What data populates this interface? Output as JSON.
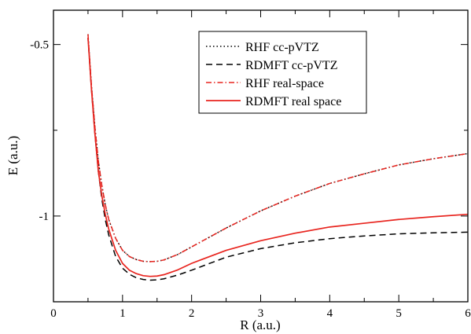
{
  "chart_data": {
    "type": "line",
    "title": "",
    "xlabel": "R (a.u.)",
    "ylabel": "E (a.u.)",
    "xlim": [
      0,
      6
    ],
    "ylim": [
      -1.25,
      -0.4
    ],
    "x_ticks": [
      0,
      1,
      2,
      3,
      4,
      5,
      6
    ],
    "y_ticks": [
      -1,
      -0.5
    ],
    "x_tick_labels": [
      "0",
      "1",
      "2",
      "3",
      "4",
      "5",
      "6"
    ],
    "y_tick_labels": [
      "-1",
      "-0.5"
    ],
    "grid": false,
    "legend_position": "top-right",
    "series": [
      {
        "name": "RHF cc-pVTZ",
        "color": "#000000",
        "dash": "dotted",
        "x": [
          0.5,
          0.55,
          0.6,
          0.65,
          0.7,
          0.75,
          0.8,
          0.9,
          1.0,
          1.1,
          1.2,
          1.3,
          1.4,
          1.5,
          1.6,
          1.8,
          2.0,
          2.5,
          3.0,
          3.5,
          4.0,
          4.5,
          5.0,
          5.5,
          6.0
        ],
        "y": [
          -0.47,
          -0.62,
          -0.74,
          -0.84,
          -0.91,
          -0.967,
          -1.01,
          -1.065,
          -1.1,
          -1.118,
          -1.127,
          -1.132,
          -1.133,
          -1.132,
          -1.128,
          -1.112,
          -1.09,
          -1.035,
          -0.985,
          -0.942,
          -0.905,
          -0.877,
          -0.851,
          -0.833,
          -0.818
        ]
      },
      {
        "name": "RDMFT cc-pVTZ",
        "color": "#000000",
        "dash": "dashed",
        "x": [
          0.5,
          0.55,
          0.6,
          0.65,
          0.7,
          0.75,
          0.8,
          0.9,
          1.0,
          1.1,
          1.2,
          1.3,
          1.4,
          1.5,
          1.6,
          1.8,
          2.0,
          2.5,
          3.0,
          3.5,
          4.0,
          4.5,
          5.0,
          5.5,
          6.0
        ],
        "y": [
          -0.48,
          -0.63,
          -0.76,
          -0.87,
          -0.95,
          -1.01,
          -1.055,
          -1.118,
          -1.152,
          -1.17,
          -1.18,
          -1.185,
          -1.187,
          -1.186,
          -1.183,
          -1.172,
          -1.158,
          -1.12,
          -1.095,
          -1.078,
          -1.066,
          -1.058,
          -1.052,
          -1.049,
          -1.047
        ]
      },
      {
        "name": "RHF real-space",
        "color": "#e8251f",
        "dash": "dashdot",
        "x": [
          0.5,
          0.55,
          0.6,
          0.65,
          0.7,
          0.75,
          0.8,
          0.9,
          1.0,
          1.1,
          1.2,
          1.3,
          1.4,
          1.5,
          1.6,
          1.8,
          2.0,
          2.5,
          3.0,
          3.5,
          4.0,
          4.5,
          5.0,
          5.5,
          6.0
        ],
        "y": [
          -0.47,
          -0.62,
          -0.74,
          -0.84,
          -0.91,
          -0.967,
          -1.01,
          -1.065,
          -1.1,
          -1.118,
          -1.127,
          -1.132,
          -1.133,
          -1.132,
          -1.128,
          -1.112,
          -1.09,
          -1.035,
          -0.985,
          -0.942,
          -0.905,
          -0.877,
          -0.851,
          -0.833,
          -0.818
        ]
      },
      {
        "name": "RDMFT real space",
        "color": "#e8251f",
        "dash": "solid",
        "x": [
          0.5,
          0.55,
          0.6,
          0.65,
          0.7,
          0.75,
          0.8,
          0.9,
          1.0,
          1.1,
          1.2,
          1.3,
          1.4,
          1.5,
          1.6,
          1.8,
          2.0,
          2.5,
          3.0,
          3.5,
          4.0,
          4.5,
          5.0,
          5.5,
          6.0
        ],
        "y": [
          -0.48,
          -0.63,
          -0.76,
          -0.87,
          -0.94,
          -0.995,
          -1.038,
          -1.1,
          -1.138,
          -1.158,
          -1.168,
          -1.174,
          -1.176,
          -1.175,
          -1.171,
          -1.157,
          -1.138,
          -1.1,
          -1.072,
          -1.05,
          -1.032,
          -1.021,
          -1.01,
          -1.002,
          -0.995
        ]
      }
    ]
  }
}
